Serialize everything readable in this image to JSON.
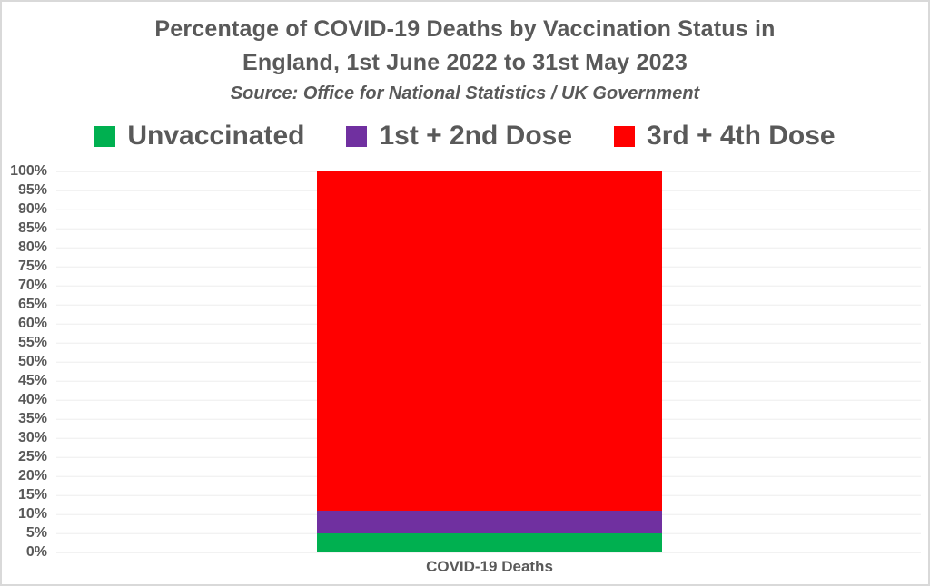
{
  "chart": {
    "title_line1": "Percentage of COVID-19 Deaths by Vaccination Status in",
    "title_line2": "England, 1st June 2022 to 31st May 2023",
    "subtitle": "Source: Office for National Statistics / UK Government"
  },
  "chart_data": {
    "type": "bar",
    "stacked": true,
    "title": "Percentage of COVID-19 Deaths by Vaccination Status in England, 1st June 2022 to 31st May 2023",
    "subtitle": "Source: Office for National Statistics / UK Government",
    "categories": [
      "COVID-19 Deaths"
    ],
    "series": [
      {
        "name": "Unvaccinated",
        "values": [
          5
        ],
        "color": "#00B050"
      },
      {
        "name": "1st + 2nd Dose",
        "values": [
          6
        ],
        "color": "#7030A0"
      },
      {
        "name": "3rd + 4th Dose",
        "values": [
          89
        ],
        "color": "#FF0000"
      }
    ],
    "xlabel": "",
    "ylabel": "",
    "ylim": [
      0,
      100
    ],
    "ytick_labels": [
      "0%",
      "5%",
      "10%",
      "15%",
      "20%",
      "25%",
      "30%",
      "35%",
      "40%",
      "45%",
      "50%",
      "55%",
      "60%",
      "65%",
      "70%",
      "75%",
      "80%",
      "85%",
      "90%",
      "95%",
      "100%"
    ],
    "grid": true,
    "legend_position": "top"
  },
  "colors": {
    "text": "#595959",
    "gridline": "#EDEDED",
    "border": "#D9D9D9",
    "background": "#FFFFFF"
  }
}
